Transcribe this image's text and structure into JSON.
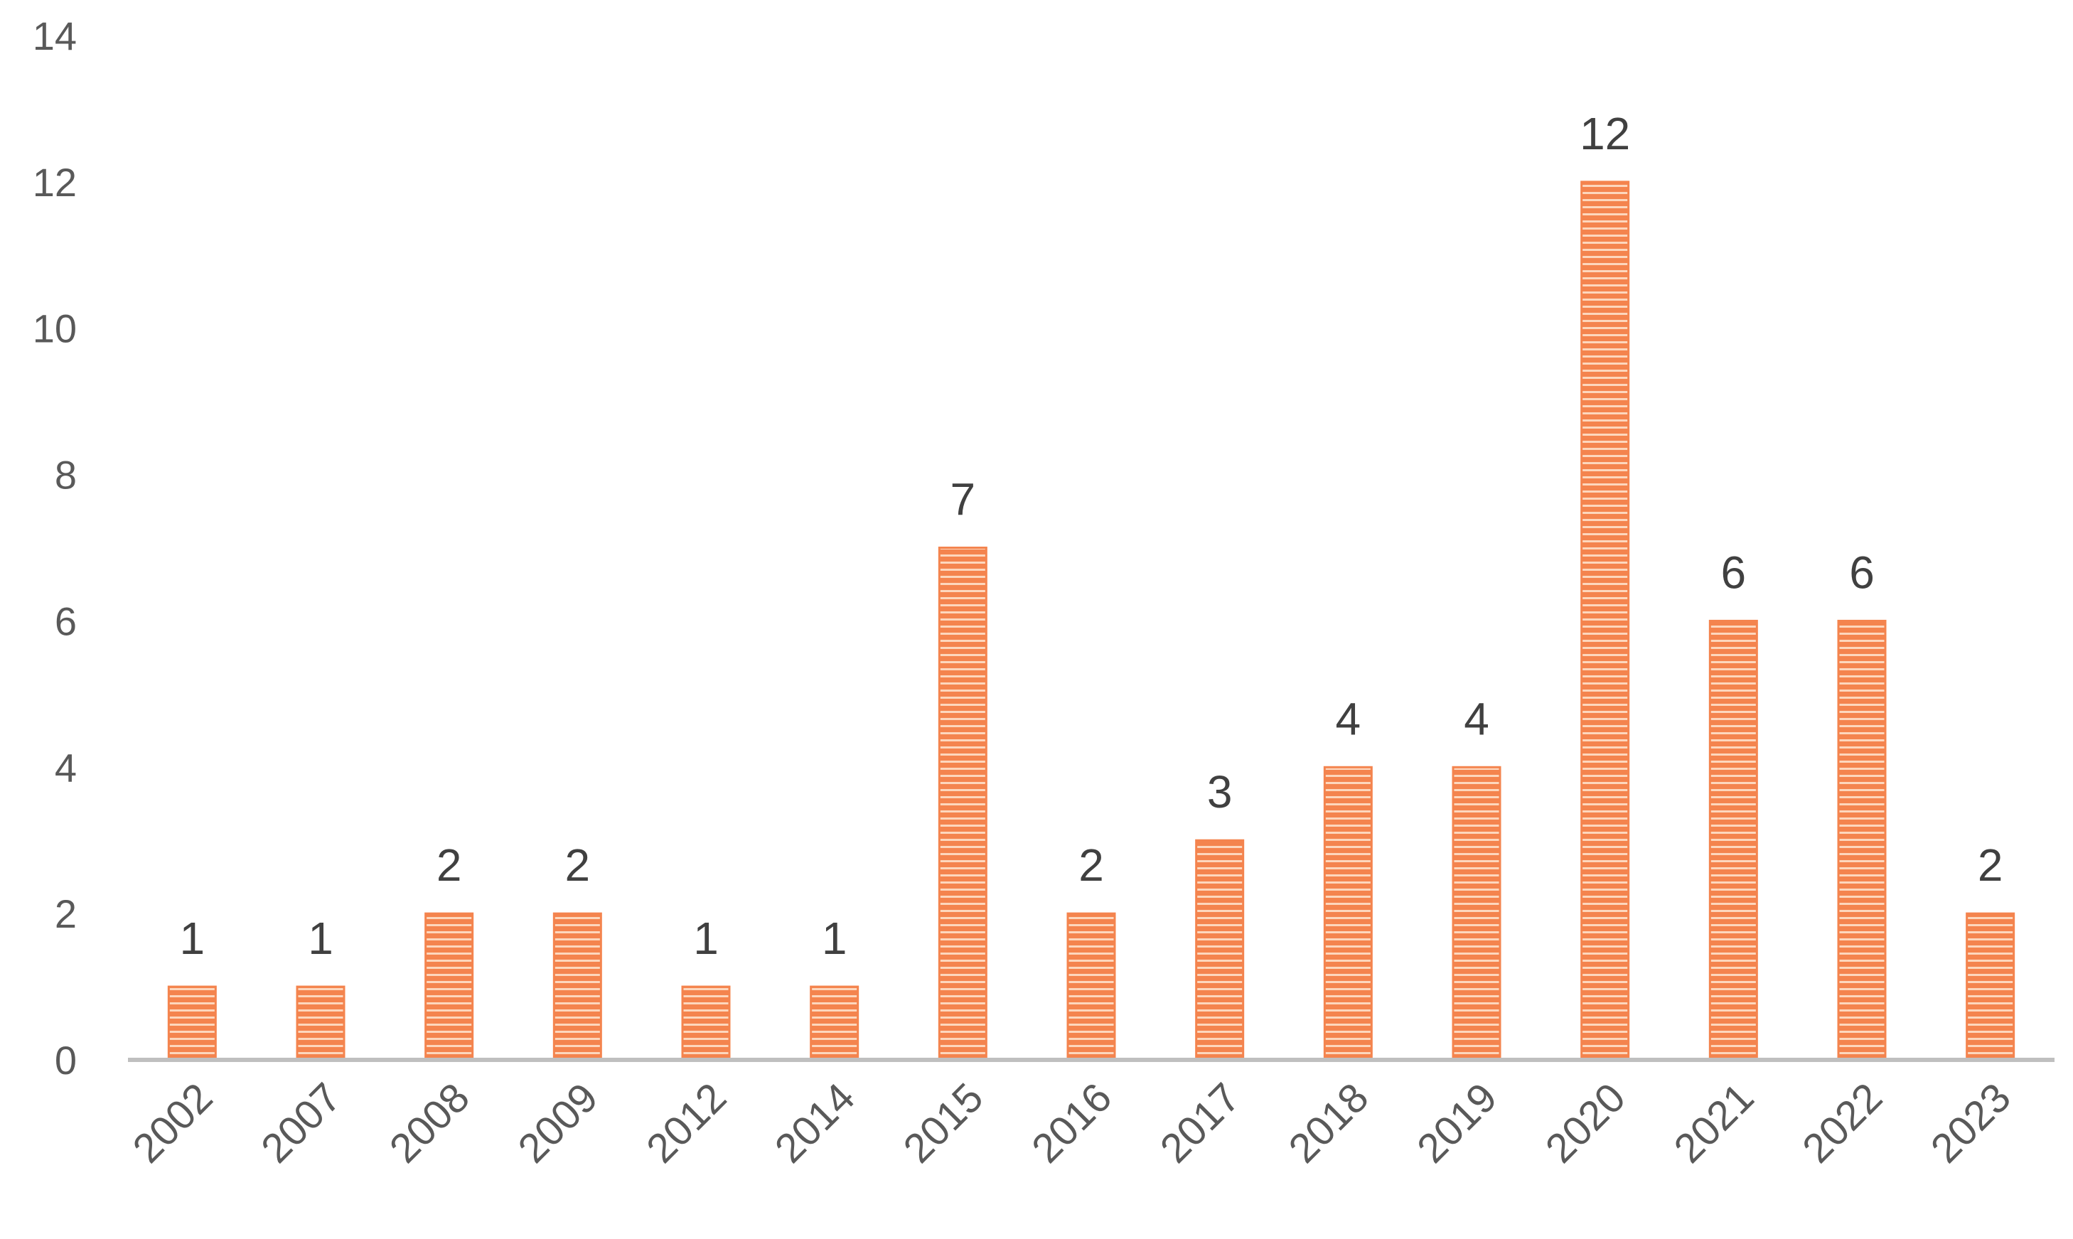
{
  "chart_data": {
    "type": "bar",
    "title": "",
    "xlabel": "",
    "ylabel": "",
    "categories": [
      "2002",
      "2007",
      "2008",
      "2009",
      "2012",
      "2014",
      "2015",
      "2016",
      "2017",
      "2018",
      "2019",
      "2020",
      "2021",
      "2022",
      "2023"
    ],
    "values": [
      1,
      1,
      2,
      2,
      1,
      1,
      7,
      2,
      3,
      4,
      4,
      12,
      6,
      6,
      2
    ],
    "ylim": [
      0,
      14
    ],
    "yticks": [
      "0",
      "2",
      "4",
      "6",
      "8",
      "10",
      "12",
      "14"
    ],
    "data_labels": true,
    "grid": false,
    "legend": "none",
    "colors": {
      "bar": "#F4844E",
      "bar_stripe": "#FDD7BD",
      "axis": "#BFBFBF",
      "tick_text": "#595959",
      "label_text": "#404040"
    }
  }
}
